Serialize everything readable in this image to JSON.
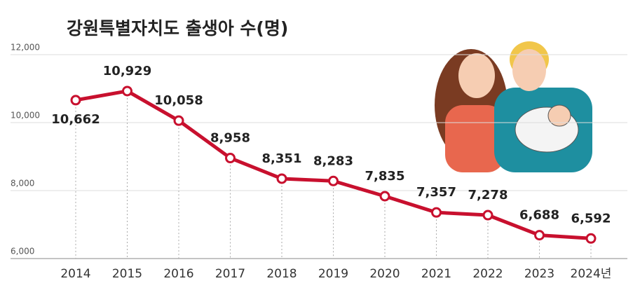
{
  "chart_data": {
    "type": "line",
    "title": "강원특별자치도 출생아 수(명)",
    "categories": [
      "2014",
      "2015",
      "2016",
      "2017",
      "2018",
      "2019",
      "2020",
      "2021",
      "2022",
      "2023",
      "2024년"
    ],
    "values": [
      10662,
      10929,
      10058,
      8958,
      8351,
      8283,
      7835,
      7357,
      7278,
      6688,
      6592
    ],
    "value_labels": [
      "10,662",
      "10,929",
      "10,058",
      "8,958",
      "8,351",
      "8,283",
      "7,835",
      "7,357",
      "7,278",
      "6,688",
      "6,592"
    ],
    "color": "#c8102e",
    "ylim": [
      6000,
      12000
    ],
    "yticks": [
      {
        "value": 6000,
        "label": "6,000"
      },
      {
        "value": 8000,
        "label": "8,000"
      },
      {
        "value": 10000,
        "label": "10,000"
      },
      {
        "value": 12000,
        "label": "12,000"
      }
    ],
    "grid": true
  }
}
